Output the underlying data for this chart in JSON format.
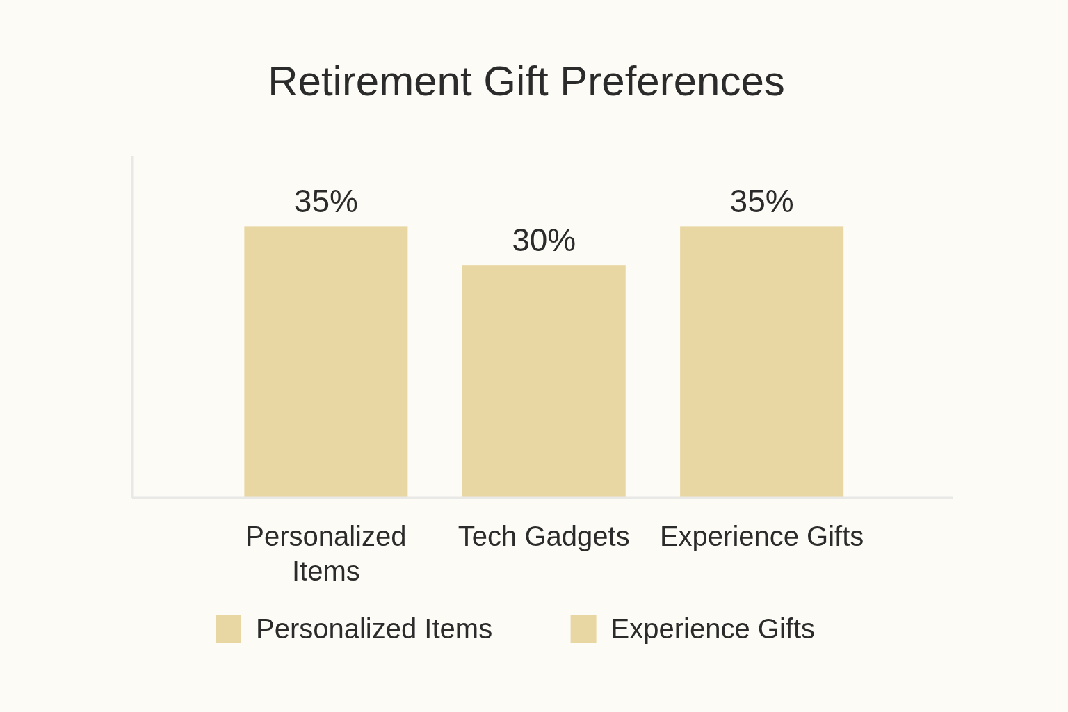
{
  "chart_data": {
    "type": "bar",
    "title": "Retirement Gift Preferences",
    "categories": [
      "Personalized Items",
      "Tech Gadgets",
      "Experience Gifts"
    ],
    "series": [
      {
        "name": "Personalized Items",
        "color": "#e9d7a3",
        "values": [
          35,
          null,
          null
        ],
        "value_labels": [
          "35%",
          null,
          null
        ]
      },
      {
        "color": "#e9d7a3",
        "values": [
          null,
          30,
          null
        ],
        "value_labels": [
          null,
          "30%",
          null
        ]
      },
      {
        "name": "Experience Gifts",
        "color": "#e9d7a3",
        "values": [
          null,
          null,
          35
        ],
        "value_labels": [
          null,
          null,
          "35%"
        ]
      }
    ],
    "legend": "bottom"
  }
}
